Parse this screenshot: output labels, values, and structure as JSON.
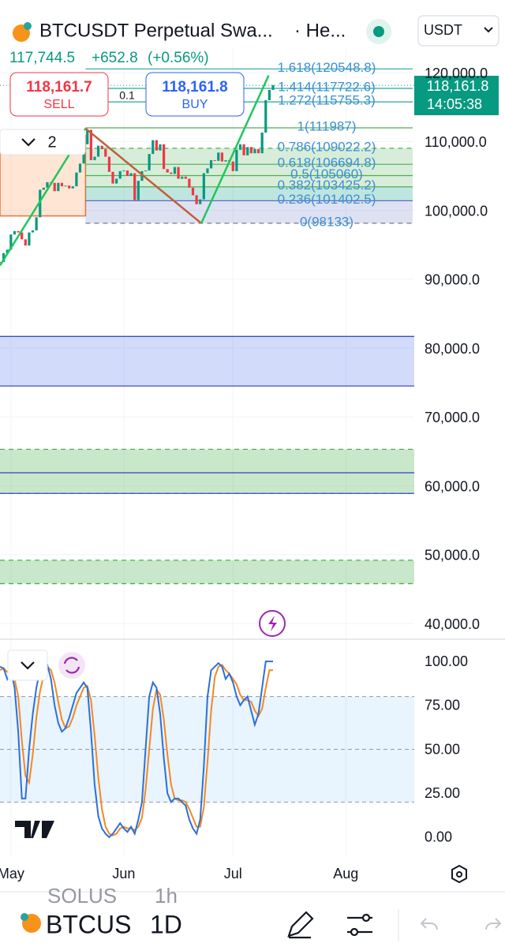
{
  "header": {
    "symbol_title": "BTCUSDT Perpetual Swa...",
    "exchange": "· He...",
    "currency": "USDT",
    "last_price": "117,744.5",
    "change": "+652.8",
    "change_pct": "(+0.56%)"
  },
  "order": {
    "sell_price": "118,161.7",
    "sell": "SELL",
    "spread": "0.1",
    "buy_price": "118,161.8",
    "buy": "BUY"
  },
  "drawings_count": 2,
  "price_tag": {
    "price": "118,161.8",
    "countdown": "14:05:38"
  },
  "chart_data": [
    {
      "type": "candlestick",
      "up_color": "#089981",
      "down_color": "#f23645",
      "x": [
        -3,
        -2,
        -1,
        0,
        1,
        2,
        3,
        4,
        5,
        6,
        7,
        8,
        9,
        10,
        11,
        12,
        13,
        14,
        15,
        16,
        17,
        18,
        19,
        20,
        21,
        22,
        23,
        24,
        25,
        26,
        27,
        28,
        29,
        30,
        31,
        32,
        33,
        34,
        35,
        36,
        37,
        38,
        39,
        40,
        41,
        42,
        43,
        44,
        45,
        46,
        47,
        48,
        49,
        50,
        51,
        52,
        53,
        54,
        55,
        56,
        57,
        58,
        59,
        60,
        61,
        62,
        63,
        64,
        65,
        66,
        67,
        68,
        69,
        70,
        71,
        72
      ],
      "values": [
        92500,
        93800,
        94300,
        96500,
        97000,
        96800,
        95800,
        94900,
        96800,
        97100,
        99000,
        103000,
        103300,
        104100,
        104000,
        102800,
        104000,
        103500,
        103600,
        103200,
        103500,
        105500,
        106800,
        109600,
        111700,
        107300,
        107800,
        109400,
        108900,
        107800,
        105600,
        103900,
        104600,
        105700,
        105800,
        105000,
        105400,
        101500,
        104300,
        105700,
        105800,
        108200,
        110200,
        108700,
        109600,
        106000,
        105500,
        105300,
        106300,
        104600,
        104900,
        104600,
        103300,
        102200,
        100900,
        101600,
        105400,
        106100,
        107300,
        107200,
        108400,
        107100,
        107300,
        107100,
        105700,
        108800,
        109600,
        108000,
        109200,
        108300,
        108900,
        108300,
        111300,
        116000,
        117500,
        118200
      ],
      "ylim": [
        38300,
        123450
      ],
      "yticks": [
        {
          "value": 120000,
          "label": "120,000.0"
        },
        {
          "value": 110000,
          "label": "110,000.0"
        },
        {
          "value": 100000,
          "label": "100,000.0"
        },
        {
          "value": 90000,
          "label": "90,000.0"
        },
        {
          "value": 80000,
          "label": "80,000.0"
        },
        {
          "value": 70000,
          "label": "70,000.0"
        },
        {
          "value": 60000,
          "label": "60,000.0"
        },
        {
          "value": 50000,
          "label": "50,000.0"
        },
        {
          "value": 40000,
          "label": "40,000.0"
        }
      ],
      "xlim": [
        -3,
        110.8
      ],
      "xticks": [
        {
          "value": 0,
          "label": "May"
        },
        {
          "value": 31,
          "label": "Jun"
        },
        {
          "value": 61,
          "label": "Jul"
        },
        {
          "value": 92,
          "label": "Aug"
        }
      ],
      "grid": true,
      "current_price": 118161.8,
      "fib_levels": [
        {
          "label": "1.618(120548.8)",
          "value": 120548.8,
          "color": "#26a69a"
        },
        {
          "label": "1.414(117722.6)",
          "value": 117722.6,
          "color": "#26a69a"
        },
        {
          "label": "1.272(115755.3)",
          "value": 115755.3,
          "color": "#26a69a"
        },
        {
          "label": "1(111987)",
          "value": 111987,
          "color": "#4caf50"
        },
        {
          "label": "0.786(109022.2)",
          "value": 109022.2,
          "color": "#4caf50",
          "dash": true,
          "fill": "rgba(76,175,80,0.22)"
        },
        {
          "label": "0.618(106694.8)",
          "value": 106694.8,
          "color": "#4caf50",
          "fill": "rgba(76,175,80,0.22)"
        },
        {
          "label": "0.5(105060)",
          "value": 105060,
          "color": "#4caf50",
          "fill": "rgba(76,175,80,0.22)"
        },
        {
          "label": "0.382(103425.2)",
          "value": 103425.2,
          "color": "#4caf50",
          "fill": "rgba(0,150,136,0.25)"
        },
        {
          "label": "0.236(101402.5)",
          "value": 101402.5,
          "color": "#5c6bc0",
          "fill": "rgba(92,107,192,0.2)"
        },
        {
          "label": "0(98133)",
          "value": 98133,
          "color": "#787b86",
          "dash": true
        }
      ],
      "fib_start": 20.5,
      "trendlines": [
        {
          "color": "#22c55e",
          "points": [
            [
              -3,
              92000
            ],
            [
              20.5,
              111900
            ]
          ]
        },
        {
          "color": "#c0603a",
          "points": [
            [
              20.5,
              111900
            ],
            [
              52.3,
              98133
            ]
          ]
        },
        {
          "color": "#22c55e",
          "points": [
            [
              52.3,
              98133
            ],
            [
              70.8,
              119600
            ]
          ]
        }
      ],
      "boxes": [
        {
          "x0": -3,
          "x1": 20.5,
          "from": 99200,
          "to": 110900,
          "fill": "rgba(255,152,80,0.25)",
          "stroke": "#e8743b"
        }
      ],
      "zones": [
        {
          "from": 74500,
          "to": 81700,
          "fill": "rgba(80,110,240,0.25)",
          "stroke": "#3b4fc4"
        },
        {
          "from": 58900,
          "to": 65300,
          "fill": "rgba(76,175,80,0.3)",
          "stroke": "#4caf50",
          "dash": true
        },
        {
          "from": 45800,
          "to": 49200,
          "fill": "rgba(76,175,80,0.3)",
          "stroke": "#4caf50",
          "dash": true
        }
      ],
      "hlines": [
        {
          "value": 61900,
          "color": "#3b4fc4"
        },
        {
          "value": 58900,
          "color": "#3b4fc4"
        }
      ]
    },
    {
      "type": "line",
      "series": [
        {
          "color": "#2f6fd6",
          "values": [
            97,
            96,
            90,
            95,
            85,
            60,
            22,
            22,
            50,
            70,
            85,
            95,
            97,
            98,
            90,
            75,
            65,
            60,
            62,
            68,
            75,
            82,
            85,
            88,
            85,
            60,
            30,
            12,
            5,
            2,
            0,
            2,
            5,
            8,
            5,
            3,
            6,
            2,
            10,
            20,
            50,
            80,
            88,
            85,
            70,
            45,
            25,
            20,
            22,
            22,
            20,
            18,
            10,
            5,
            2,
            10,
            40,
            80,
            95,
            97,
            99,
            97,
            90,
            93,
            88,
            80,
            75,
            78,
            80,
            72,
            64,
            70,
            85,
            100,
            100,
            100
          ]
        },
        {
          "color": "#f08a24",
          "values": [
            95,
            96,
            94,
            94,
            90,
            80,
            55,
            35,
            31,
            47,
            68,
            83,
            92,
            97,
            95,
            88,
            77,
            67,
            62,
            63,
            68,
            75,
            80,
            85,
            86,
            78,
            58,
            34,
            16,
            6,
            2,
            1,
            2,
            5,
            6,
            5,
            5,
            4,
            6,
            11,
            27,
            50,
            73,
            84,
            81,
            67,
            47,
            30,
            22,
            21,
            21,
            20,
            16,
            11,
            6,
            6,
            17,
            43,
            72,
            91,
            97,
            98,
            95,
            93,
            90,
            87,
            81,
            78,
            78,
            77,
            72,
            69,
            73,
            85,
            95,
            95
          ]
        }
      ],
      "ylim": [
        -10.8,
        112.6
      ],
      "yticks": [
        {
          "value": 100,
          "label": "100.00"
        },
        {
          "value": 75,
          "label": "75.00"
        },
        {
          "value": 50,
          "label": "50.00"
        },
        {
          "value": 25,
          "label": "25.00"
        },
        {
          "value": 0,
          "label": "0.00"
        }
      ],
      "bands": [
        20,
        80
      ],
      "midline": 50,
      "band_color": "rgba(33,150,243,0.1)"
    }
  ],
  "footer": {
    "prev_symbol": "SOLUS",
    "prev_interval": "1h",
    "symbol": "BTCUS",
    "interval": "1D"
  }
}
